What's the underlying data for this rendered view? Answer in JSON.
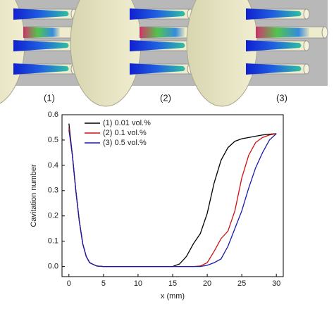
{
  "panels": [
    "(1)",
    "(2)",
    "(3)"
  ],
  "chart_data": {
    "type": "line",
    "xlabel": "x (mm)",
    "ylabel": "Cavitation number",
    "x": [
      0,
      0.5,
      1,
      1.5,
      2,
      2.5,
      3,
      4,
      5,
      10,
      15,
      16,
      17,
      18,
      19,
      20,
      21,
      22,
      23,
      24,
      25,
      26,
      27,
      28,
      29,
      30
    ],
    "series": [
      {
        "name": "(1) 0.01 vol.%",
        "color": "#000000",
        "values": [
          0.565,
          0.44,
          0.3,
          0.18,
          0.09,
          0.04,
          0.015,
          0.002,
          0,
          0,
          0,
          0.01,
          0.04,
          0.09,
          0.13,
          0.21,
          0.33,
          0.42,
          0.47,
          0.495,
          0.505,
          0.51,
          0.515,
          0.52,
          0.523,
          0.525
        ]
      },
      {
        "name": "(2) 0.1 vol.%",
        "color": "#d01010",
        "values": [
          0.55,
          0.44,
          0.3,
          0.18,
          0.09,
          0.04,
          0.015,
          0.002,
          0,
          0,
          0,
          0,
          0,
          0,
          0.002,
          0.015,
          0.06,
          0.11,
          0.14,
          0.22,
          0.35,
          0.44,
          0.49,
          0.51,
          0.52,
          0.525
        ]
      },
      {
        "name": "(3) 0.5 vol.%",
        "color": "#1a1aa8",
        "values": [
          0.54,
          0.44,
          0.3,
          0.18,
          0.09,
          0.04,
          0.015,
          0.002,
          0,
          0,
          0,
          0,
          0,
          0,
          0,
          0.005,
          0.015,
          0.03,
          0.08,
          0.15,
          0.22,
          0.31,
          0.39,
          0.45,
          0.5,
          0.525
        ]
      }
    ],
    "xlim": [
      -1,
      31
    ],
    "ylim": [
      -0.04,
      0.6
    ],
    "xticks": [
      0,
      5,
      10,
      15,
      20,
      25,
      30
    ],
    "yticks": [
      {
        "value": 0,
        "label": "0.0"
      },
      0.1,
      0.2,
      0.3,
      0.4,
      0.5,
      0.6
    ],
    "legend": "upper-left"
  }
}
